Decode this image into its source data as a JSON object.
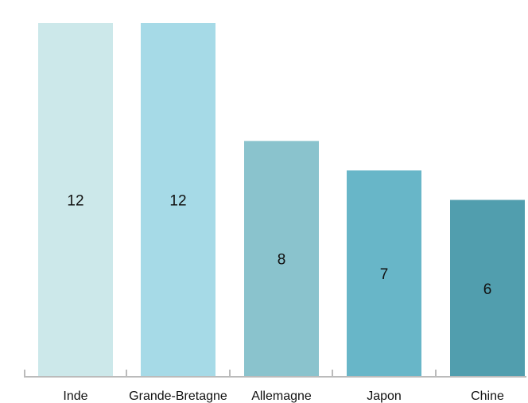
{
  "chart_data": {
    "type": "bar",
    "categories": [
      "Inde",
      "Grande-Bretagne",
      "Allemagne",
      "Japon",
      "Chine"
    ],
    "values": [
      12,
      12,
      8,
      7,
      6
    ],
    "data_labels": [
      "12",
      "12",
      "8",
      "7",
      "6"
    ],
    "bar_colors": [
      "#cce8ea",
      "#a6dae7",
      "#8ac3cd",
      "#68b6c8",
      "#519eae"
    ],
    "axis_color": "#bbbbbb",
    "title": "",
    "xlabel": "",
    "ylabel": "",
    "ylim": [
      0,
      12
    ],
    "grid": false,
    "legend": "none"
  }
}
